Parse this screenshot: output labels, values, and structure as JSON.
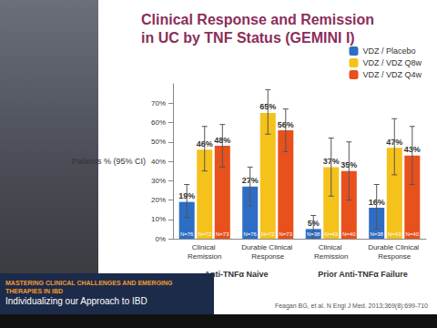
{
  "chart_data": {
    "type": "bar",
    "title": "Clinical Response and Remission in UC by TNF Status (GEMINI I)",
    "ylabel": "Patients % (95% CI)",
    "categories": [
      "Clinical Remission",
      "Durable Clinical Response",
      "Clinical Remission",
      "Durable Clinical Response"
    ],
    "group_labels": [
      "Anti-TNFα Naive",
      "Prior Anti-TNFα Failure"
    ],
    "series": [
      {
        "name": "VDZ / Placebo",
        "color": "#2e6dc4",
        "values": [
          19,
          27,
          5,
          16
        ],
        "value_labels": [
          "19%",
          "27%",
          "5%",
          "16%"
        ],
        "ci_low": [
          11,
          17,
          0,
          5
        ],
        "ci_high": [
          28,
          37,
          12,
          28
        ],
        "n_labels": [
          "N=76",
          "N=76",
          "N=38",
          "N=38"
        ]
      },
      {
        "name": "VDZ / VDZ Q8w",
        "color": "#f5c21b",
        "values": [
          46,
          65,
          37,
          47
        ],
        "value_labels": [
          "46%",
          "65%",
          "37%",
          "47%"
        ],
        "ci_low": [
          35,
          54,
          22,
          33
        ],
        "ci_high": [
          58,
          77,
          52,
          62
        ],
        "n_labels": [
          "N=72",
          "N=72",
          "N=43",
          "N=43"
        ]
      },
      {
        "name": "VDZ / VDZ Q4w",
        "color": "#e8501c",
        "values": [
          48,
          56,
          35,
          43
        ],
        "value_labels": [
          "48%",
          "56%",
          "35%",
          "43%"
        ],
        "ci_low": [
          37,
          45,
          20,
          28
        ],
        "ci_high": [
          59,
          67,
          50,
          58
        ],
        "n_labels": [
          "N=73",
          "N=73",
          "N=40",
          "N=40"
        ]
      }
    ],
    "ylim": [
      0,
      80
    ],
    "yticks": [
      {
        "value": 0,
        "label": "0%"
      },
      {
        "value": 10,
        "label": "10%"
      },
      {
        "value": 20,
        "label": "20%"
      },
      {
        "value": 30,
        "label": "30%"
      },
      {
        "value": 40,
        "label": "40%"
      },
      {
        "value": 50,
        "label": "50%"
      },
      {
        "value": 60,
        "label": "60%"
      },
      {
        "value": 70,
        "label": "70%"
      }
    ],
    "grid": false,
    "legend": "upper right",
    "data_labels": true,
    "source": "Feagan BG, et al. N Engl J Med. 2013;369(8):699-710"
  },
  "footer": {
    "title": "MASTERING CLINICAL CHALLENGES AND EMERGING THERAPIES IN IBD",
    "subtitle": "Individualizing our Approach to IBD"
  }
}
